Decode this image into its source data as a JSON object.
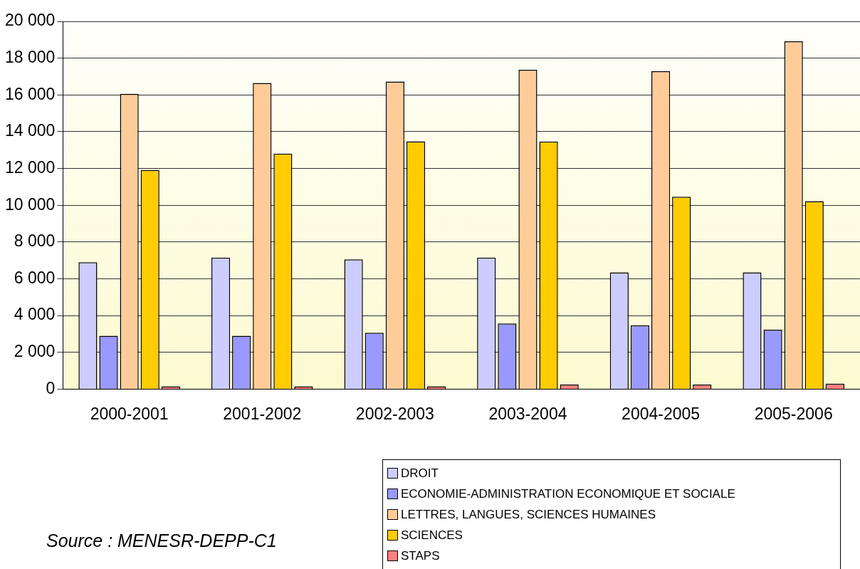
{
  "chart_data": {
    "type": "bar",
    "categories": [
      "2000-2001",
      "2001-2002",
      "2002-2003",
      "2003-2004",
      "2004-2005",
      "2005-2006"
    ],
    "series": [
      {
        "name": "DROIT",
        "color": "#ccccff",
        "values": [
          6900,
          7150,
          7050,
          7150,
          6350,
          6350
        ]
      },
      {
        "name": "ECONOMIE-ADMINISTRATION ECONOMIQUE ET SOCIALE",
        "color": "#9999ff",
        "values": [
          2900,
          2900,
          3070,
          3570,
          3470,
          3230
        ]
      },
      {
        "name": "LETTRES, LANGUES, SCIENCES HUMAINES",
        "color": "#ffcc99",
        "values": [
          16060,
          16650,
          16730,
          17370,
          17290,
          18920
        ]
      },
      {
        "name": "SCIENCES",
        "color": "#ffcc00",
        "values": [
          11920,
          12810,
          13470,
          13460,
          10460,
          10220
        ]
      },
      {
        "name": "STAPS",
        "color": "#ff8080",
        "values": [
          150,
          150,
          150,
          250,
          250,
          300
        ]
      }
    ],
    "ylim": [
      0,
      20000
    ],
    "yticks": [
      {
        "value": 0,
        "label": "0"
      },
      {
        "value": 2000,
        "label": "2 000"
      },
      {
        "value": 4000,
        "label": "4 000"
      },
      {
        "value": 6000,
        "label": "6 000"
      },
      {
        "value": 8000,
        "label": "8 000"
      },
      {
        "value": 10000,
        "label": "10 000"
      },
      {
        "value": 12000,
        "label": "12 000"
      },
      {
        "value": 14000,
        "label": "14 000"
      },
      {
        "value": 16000,
        "label": "16 000"
      },
      {
        "value": 18000,
        "label": "18 000"
      },
      {
        "value": 20000,
        "label": "20 000"
      }
    ],
    "grid": "y",
    "legend": "bottom right",
    "annotations": [
      "Source : MENESR-DEPP-C1"
    ]
  }
}
